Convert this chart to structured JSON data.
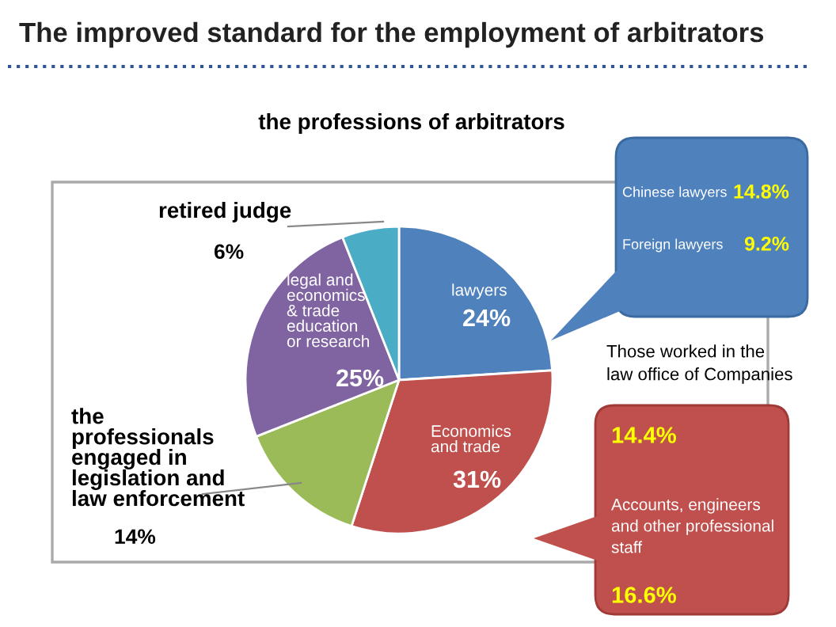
{
  "chart_data": {
    "type": "pie",
    "title": "The improved standard for the employment of arbitrators",
    "subtitle": "the professions of arbitrators",
    "categories": [
      "lawyers",
      "Economics\nand trade",
      "the\nprofessionals\nengaged in\nlegislation and\nlaw enforcement",
      "legal and\neconomics\n& trade\neducation\nor research",
      "retired judge"
    ],
    "values": [
      24,
      31,
      14,
      25,
      6
    ],
    "value_labels": [
      "24%",
      "31%",
      "14%",
      "25%",
      "6%"
    ],
    "colors": [
      "#4f81bd",
      "#c0504d",
      "#9bbb59",
      "#8064a2",
      "#4bacc6"
    ],
    "annotations": [
      "Chinese lawyers",
      "14.8%",
      "Foreign lawyers",
      "9.2%",
      "Those worked in the\nlaw office of Companies",
      "14.4%",
      "Accounts, engineers\nand other professional\nstaff",
      "16.6%"
    ]
  }
}
